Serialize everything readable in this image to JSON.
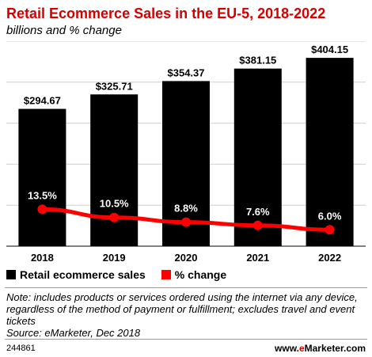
{
  "header": {
    "title": "Retail Ecommerce Sales in the EU-5, 2018-2022",
    "subtitle": "billions and % change"
  },
  "chart_data": {
    "type": "bar",
    "categories": [
      "2018",
      "2019",
      "2020",
      "2021",
      "2022"
    ],
    "series": [
      {
        "name": "Retail ecommerce sales",
        "type": "bar",
        "values": [
          294.67,
          325.71,
          354.37,
          381.15,
          404.15
        ],
        "labels": [
          "$294.67",
          "$325.71",
          "$354.37",
          "$381.15",
          "$404.15"
        ],
        "color": "#000000"
      },
      {
        "name": "% change",
        "type": "line",
        "values": [
          13.5,
          10.5,
          8.8,
          7.6,
          6.0
        ],
        "labels": [
          "13.5%",
          "10.5%",
          "8.8%",
          "7.6%",
          "6.0%"
        ],
        "color": "#ff0000"
      }
    ],
    "ylim": [
      0,
      440
    ],
    "y2lim": [
      0,
      75
    ],
    "grid": true,
    "legend": "bottom-left"
  },
  "legend": {
    "bars_label": "Retail ecommerce sales",
    "line_label": "% change"
  },
  "footer": {
    "note": "Note: includes products or services ordered using the internet via any device, regardless of the method of payment or fulfillment; excludes travel and event tickets",
    "source": "Source: eMarketer, Dec 2018",
    "chart_id": "244861",
    "brand_prefix": "www.",
    "brand_e": "e",
    "brand_rest": "Marketer.com"
  },
  "colors": {
    "accent": "#d40000",
    "bar": "#000000",
    "line": "#ff0000"
  }
}
